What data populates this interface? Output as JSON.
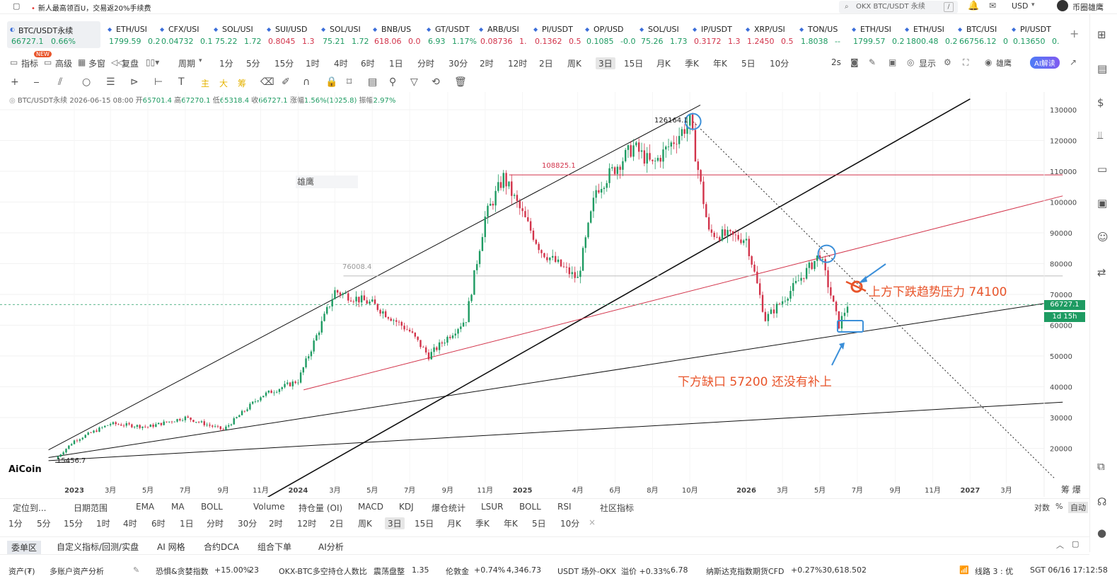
{
  "promo": "新人最高领百U，交易返20%手续费",
  "search": {
    "placeholder": "OKX BTC/USDT 永续"
  },
  "currency": "USD",
  "account_name": "币圈雄鹰",
  "tickers": [
    {
      "name": "BTC/USDT永续",
      "price": "66727.1",
      "change": "0.66%",
      "dir": "up"
    },
    {
      "name": "ETH/USI",
      "price": "1799.59",
      "change": "0.2",
      "dir": "up"
    },
    {
      "name": "CFX/USI",
      "price": "0.04732",
      "change": "0.1",
      "dir": "up"
    },
    {
      "name": "SOL/USI",
      "price": "75.22",
      "change": "1.72",
      "dir": "up"
    },
    {
      "name": "SUI/USD",
      "price": "0.8045",
      "change": "1.3",
      "dir": "dn"
    },
    {
      "name": "SOL/USI",
      "price": "75.21",
      "change": "1.72",
      "dir": "up"
    },
    {
      "name": "BNB/US",
      "price": "618.06",
      "change": "0.0",
      "dir": "dn"
    },
    {
      "name": "GT/USDT",
      "price": "6.93",
      "change": "1.17%",
      "dir": "up"
    },
    {
      "name": "ARB/USI",
      "price": "0.08736",
      "change": "1.",
      "dir": "dn"
    },
    {
      "name": "PI/USDT",
      "price": "0.1362",
      "change": "0.5",
      "dir": "dn"
    },
    {
      "name": "OP/USD",
      "price": "0.1085",
      "change": "-0.0",
      "dir": "up"
    },
    {
      "name": "SOL/USI",
      "price": "75.26",
      "change": "1.73",
      "dir": "up"
    },
    {
      "name": "IP/USDT",
      "price": "0.3172",
      "change": "1.3",
      "dir": "dn"
    },
    {
      "name": "XRP/USI",
      "price": "1.2450",
      "change": "0.5",
      "dir": "dn"
    },
    {
      "name": "TON/US",
      "price": "1.8038",
      "change": "--",
      "dir": "up"
    },
    {
      "name": "ETH/USI",
      "price": "1799.57",
      "change": "0.2",
      "dir": "up"
    },
    {
      "name": "ETH/USI",
      "price": "1800.48",
      "change": "0.2",
      "dir": "up"
    },
    {
      "name": "BTC/USI",
      "price": "66756.12",
      "change": "0",
      "dir": "up"
    },
    {
      "name": "PI/USDT",
      "price": "0.13650",
      "change": "0.",
      "dir": "up"
    }
  ],
  "toolbar": {
    "indicator": "指标",
    "advanced": "高级",
    "new_badge": "NEW",
    "multi_window": "多窗",
    "replay": "复盘",
    "period": "周期",
    "periods": [
      "1分",
      "5分",
      "15分",
      "1时",
      "4时",
      "6时",
      "1日",
      "分时",
      "30分",
      "2时",
      "12时",
      "2日",
      "周K",
      "3日",
      "15日",
      "月K",
      "季K",
      "年K",
      "5日",
      "10分"
    ],
    "selected_period": "3日",
    "refresh": "2s",
    "display": "显示",
    "author": "雄鹰",
    "ai": "AI解读"
  },
  "info": {
    "symbol": "BTC/USDT永续",
    "datetime": "2026-06-15 08:00",
    "open_label": "开",
    "open": "65701.4",
    "high_label": "高",
    "high": "67270.1",
    "low_label": "低",
    "low": "65318.4",
    "close_label": "收",
    "close": "66727.1",
    "chg_label": "涨幅",
    "chg": "1.56%(1025.8)",
    "amp_label": "振幅",
    "amp": "2.97%"
  },
  "chart_data": {
    "type": "candlestick",
    "symbol": "BTC/USDT永续",
    "interval": "3日",
    "y_axis": {
      "ticks": [
        20000,
        30000,
        40000,
        50000,
        60000,
        70000,
        80000,
        90000,
        100000,
        110000,
        120000,
        130000
      ],
      "range": [
        15000,
        132000
      ]
    },
    "x_axis_labels": [
      "2023",
      "3月",
      "5月",
      "7月",
      "9月",
      "11月",
      "2024",
      "3月",
      "5月",
      "7月",
      "9月",
      "11月",
      "2025",
      "4月",
      "6月",
      "8月",
      "10月",
      "2026",
      "3月",
      "5月",
      "7月",
      "9月",
      "11月",
      "2027",
      "3月"
    ],
    "price_path": [
      [
        "2022-12",
        16500
      ],
      [
        "2023-01",
        22500
      ],
      [
        "2023-03",
        28000
      ],
      [
        "2023-05",
        27000
      ],
      [
        "2023-07",
        30000
      ],
      [
        "2023-09",
        26000
      ],
      [
        "2023-11",
        37000
      ],
      [
        "2024-01",
        42000
      ],
      [
        "2024-03",
        71000
      ],
      [
        "2024-05",
        67000
      ],
      [
        "2024-07",
        58000
      ],
      [
        "2024-08",
        50000
      ],
      [
        "2024-10",
        62000
      ],
      [
        "2024-11",
        95000
      ],
      [
        "2024-12",
        108000
      ],
      [
        "2025-02",
        84000
      ],
      [
        "2025-04",
        75000
      ],
      [
        "2025-05",
        104000
      ],
      [
        "2025-07",
        118000
      ],
      [
        "2025-08",
        112000
      ],
      [
        "2025-10",
        126000
      ],
      [
        "2025-11",
        90000
      ],
      [
        "2026-01",
        88000
      ],
      [
        "2026-02",
        62000
      ],
      [
        "2026-03",
        68000
      ],
      [
        "2026-05",
        83000
      ],
      [
        "2026-06",
        60000
      ],
      [
        "2026-06-15",
        66727.1
      ]
    ],
    "labels": {
      "high": "126164.1",
      "line_108": "108825.1",
      "line_76": "76008.4",
      "low": "15456.7",
      "watermark": "雄鹰"
    },
    "current_price": "66727.1",
    "countdown": "1d 15h",
    "annotations": [
      "上方下跌趋势压力 74100",
      "下方缺口 57200 还没有补上"
    ],
    "logo": "AiCoin"
  },
  "indicators": [
    "定位到...",
    "日期范围",
    "EMA",
    "MA",
    "BOLL",
    "Volume",
    "持仓量 (OI)",
    "MACD",
    "KDJ",
    "爆仓统计",
    "LSUR",
    "BOLL",
    "RSI",
    "社区指标"
  ],
  "scale": {
    "log": "对数",
    "pct": "%",
    "auto": "自动"
  },
  "bottom_periods": [
    "1分",
    "5分",
    "15分",
    "1时",
    "4时",
    "6时",
    "1日",
    "分时",
    "30分",
    "2时",
    "12时",
    "2日",
    "周K",
    "3日",
    "15日",
    "月K",
    "季K",
    "年K",
    "5日",
    "10分"
  ],
  "tabs": [
    "委单区",
    "自定义指标/回测/实盘",
    "AI 网格",
    "合约DCA",
    "组合下单",
    "AI分析"
  ],
  "status": {
    "assets": "资产(₮)",
    "multi": "多账户资产分析",
    "fear_label": "恐惧&贪婪指数",
    "fear_chg": "+15.00%",
    "fear_val": "23",
    "okx_label": "OKX-BTC多空持仓人数比",
    "okx_state": "震荡盘整",
    "okx_val": "1.35",
    "gold_label": "伦敦金",
    "gold_chg": "+0.74%",
    "gold_val": "4,346.73",
    "usdt_label": "USDT 场外-OKX",
    "usdt_prem": "溢价 +0.33%",
    "usdt_val": "6.78",
    "nas_label": "纳斯达克指数期货CFD",
    "nas_chg": "+0.27%",
    "nas_val": "30,618.502",
    "line": "线路 3 : 优",
    "time": "SGT 06/16 17:12:58"
  },
  "colors": {
    "up": "#1e9b62",
    "down": "#d2334a",
    "annotation": "#e8542a",
    "highlight": "#3b8fd9"
  }
}
